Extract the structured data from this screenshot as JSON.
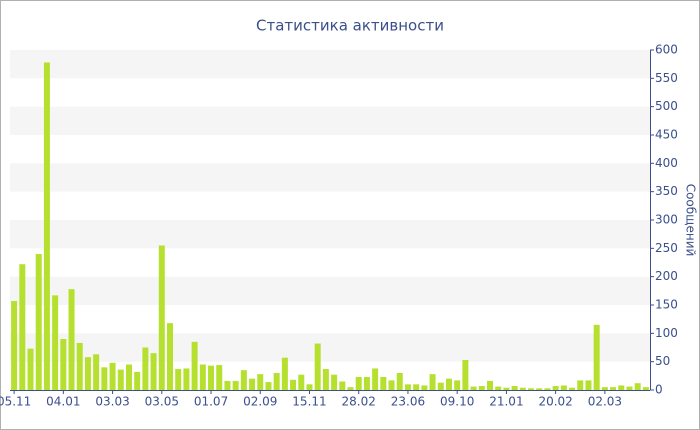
{
  "chart_data": {
    "type": "bar",
    "title": "Статистика активности",
    "y_label": "Сообщений",
    "categories": [
      "05.11",
      null,
      null,
      null,
      null,
      null,
      "04.01",
      null,
      null,
      null,
      null,
      null,
      "03.03",
      null,
      null,
      null,
      null,
      null,
      "03.05",
      null,
      null,
      null,
      null,
      null,
      "01.07",
      null,
      null,
      null,
      null,
      null,
      "02.09",
      null,
      null,
      null,
      null,
      null,
      "15.11",
      null,
      null,
      null,
      null,
      null,
      "28.02",
      null,
      null,
      null,
      null,
      null,
      "23.06",
      null,
      null,
      null,
      null,
      null,
      "09.10",
      null,
      null,
      null,
      null,
      null,
      "21.01",
      null,
      null,
      null,
      null,
      null,
      "20.02",
      null,
      null,
      null,
      null,
      null,
      "02.03",
      null,
      null,
      null,
      null,
      null
    ],
    "values": [
      157,
      222,
      73,
      240,
      578,
      167,
      90,
      178,
      83,
      58,
      63,
      40,
      48,
      36,
      45,
      32,
      75,
      65,
      255,
      118,
      37,
      38,
      85,
      45,
      43,
      44,
      16,
      16,
      35,
      20,
      28,
      14,
      30,
      57,
      18,
      27,
      10,
      82,
      37,
      27,
      15,
      5,
      23,
      23,
      38,
      23,
      17,
      30,
      10,
      10,
      8,
      28,
      13,
      20,
      17,
      53,
      6,
      7,
      16,
      6,
      4,
      7,
      4,
      3,
      3,
      3,
      7,
      8,
      4,
      17,
      17,
      115,
      5,
      5,
      8,
      6,
      12,
      5
    ],
    "color": "#b6e02f",
    "ylim": [
      0,
      600
    ],
    "yticks": [
      0,
      50,
      100,
      150,
      200,
      250,
      300,
      350,
      400,
      450,
      500,
      550,
      600
    ],
    "grid": true
  }
}
